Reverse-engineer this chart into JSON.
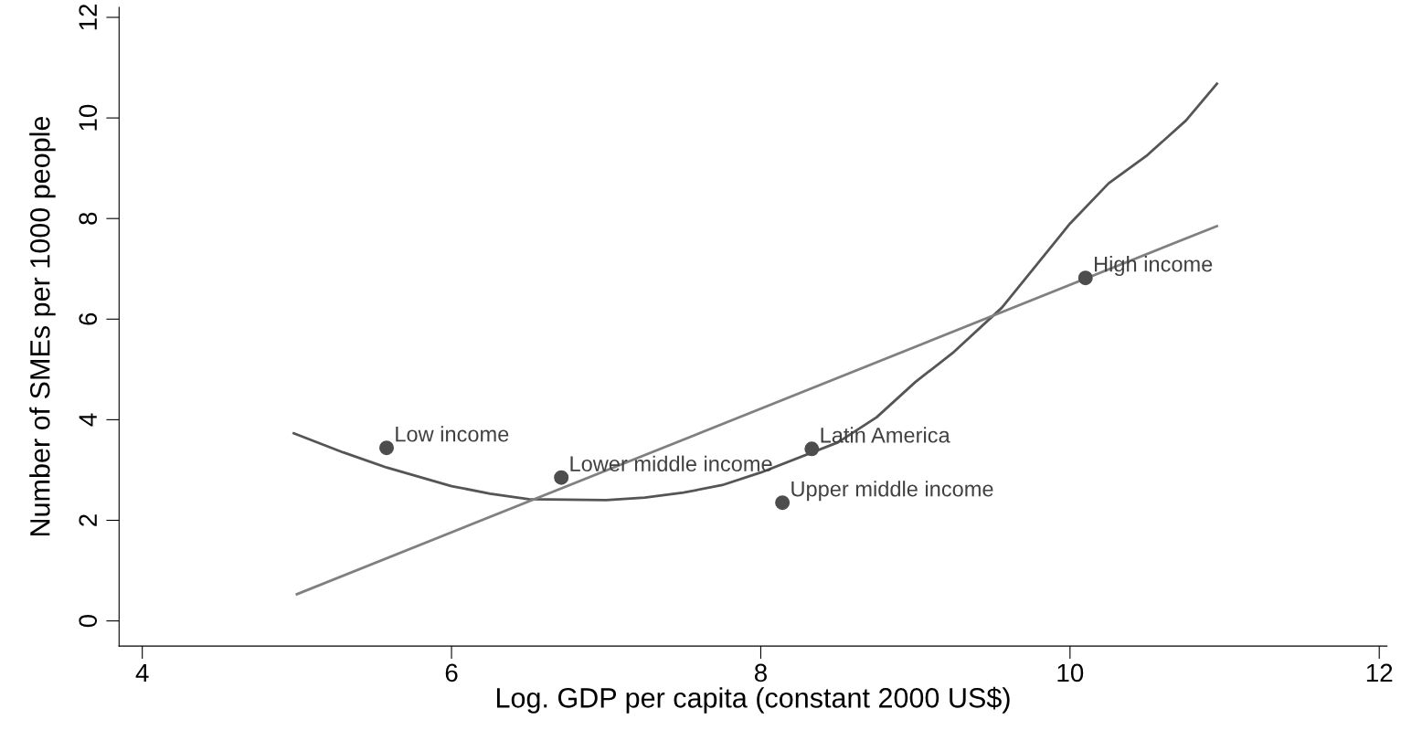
{
  "chart_data": {
    "type": "scatter",
    "xlabel": "Log. GDP per capita (constant 2000 US$)",
    "ylabel": "Number of SMEs per 1000 people",
    "xlim": [
      3.85,
      12.05
    ],
    "ylim": [
      -0.5,
      12.2
    ],
    "xticks": [
      4,
      6,
      8,
      10,
      12
    ],
    "yticks": [
      0,
      2,
      4,
      6,
      8,
      10,
      12
    ],
    "grid": false,
    "legend": false,
    "series": [
      {
        "color": "#4d4d4d",
        "marker": "circle",
        "x": [
          5.58,
          6.71,
          8.14,
          8.33,
          10.1
        ],
        "values": [
          3.44,
          2.85,
          2.35,
          3.42,
          6.82
        ],
        "value_labels": [
          "Low income",
          "Lower middle income",
          "Upper middle income",
          "Latin America",
          "High income"
        ]
      },
      {
        "type": "line",
        "color": "#555555",
        "marker": "none",
        "x": [
          4.98,
          5.3,
          5.58,
          6.0,
          6.25,
          6.5,
          7.0,
          7.25,
          7.5,
          7.75,
          8.0,
          8.5,
          8.75,
          9.0,
          9.25,
          9.56,
          10.0,
          10.25,
          10.5,
          10.75,
          10.95
        ],
        "values": [
          3.73,
          3.35,
          3.05,
          2.68,
          2.53,
          2.42,
          2.4,
          2.45,
          2.55,
          2.7,
          2.95,
          3.55,
          4.05,
          4.75,
          5.35,
          6.23,
          7.9,
          8.7,
          9.26,
          9.95,
          10.68
        ]
      },
      {
        "type": "line",
        "color": "#808080",
        "marker": "none",
        "x": [
          5.0,
          10.95
        ],
        "values": [
          0.53,
          7.85
        ]
      }
    ]
  }
}
